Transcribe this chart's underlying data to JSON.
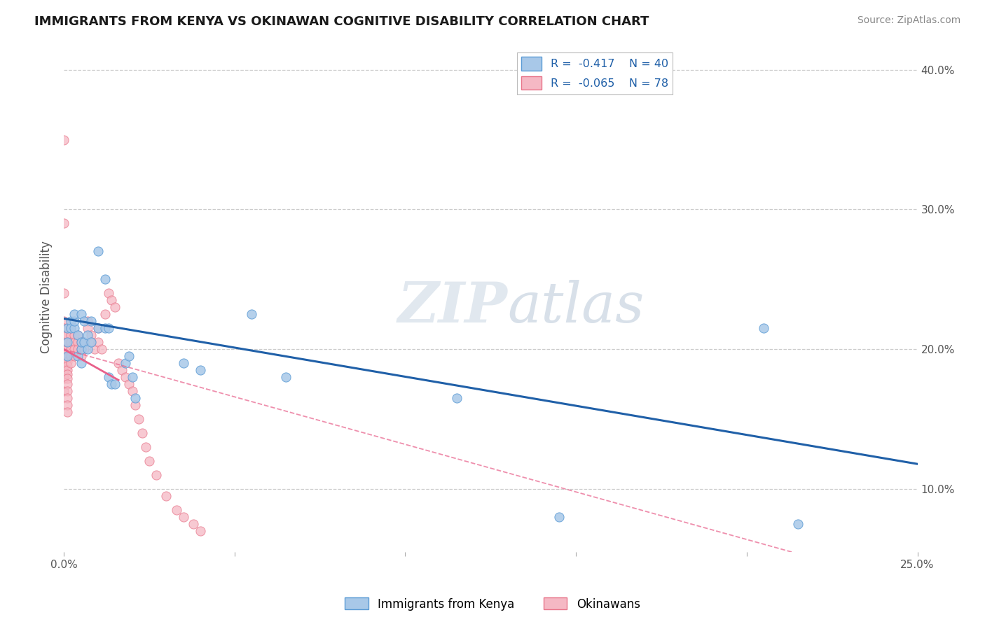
{
  "title": "IMMIGRANTS FROM KENYA VS OKINAWAN COGNITIVE DISABILITY CORRELATION CHART",
  "source": "Source: ZipAtlas.com",
  "ylabel": "Cognitive Disability",
  "xlim": [
    0.0,
    0.25
  ],
  "ylim": [
    0.055,
    0.42
  ],
  "ytick_right_labels": [
    "10.0%",
    "20.0%",
    "30.0%",
    "40.0%"
  ],
  "ytick_right_values": [
    0.1,
    0.2,
    0.3,
    0.4
  ],
  "background_color": "#ffffff",
  "grid_color": "#cccccc",
  "kenya_scatter": {
    "x": [
      0.001,
      0.001,
      0.001,
      0.002,
      0.002,
      0.003,
      0.003,
      0.003,
      0.004,
      0.004,
      0.005,
      0.005,
      0.005,
      0.005,
      0.006,
      0.006,
      0.007,
      0.007,
      0.008,
      0.008,
      0.01,
      0.01,
      0.012,
      0.012,
      0.013,
      0.013,
      0.014,
      0.015,
      0.018,
      0.019,
      0.02,
      0.021,
      0.035,
      0.04,
      0.055,
      0.065,
      0.115,
      0.145,
      0.205,
      0.215
    ],
    "y": [
      0.215,
      0.205,
      0.195,
      0.22,
      0.215,
      0.215,
      0.22,
      0.225,
      0.195,
      0.21,
      0.19,
      0.2,
      0.205,
      0.225,
      0.205,
      0.22,
      0.2,
      0.21,
      0.205,
      0.22,
      0.215,
      0.27,
      0.215,
      0.25,
      0.215,
      0.18,
      0.175,
      0.175,
      0.19,
      0.195,
      0.18,
      0.165,
      0.19,
      0.185,
      0.225,
      0.18,
      0.165,
      0.08,
      0.215,
      0.075
    ],
    "color": "#a8c8e8",
    "edgecolor": "#5b9bd5"
  },
  "okinawa_scatter": {
    "x": [
      0.0,
      0.0,
      0.0,
      0.0,
      0.0,
      0.0,
      0.0,
      0.0,
      0.0,
      0.0,
      0.0,
      0.0,
      0.0,
      0.0,
      0.0,
      0.0,
      0.001,
      0.001,
      0.001,
      0.001,
      0.001,
      0.001,
      0.001,
      0.001,
      0.001,
      0.001,
      0.001,
      0.001,
      0.001,
      0.001,
      0.001,
      0.001,
      0.002,
      0.002,
      0.002,
      0.002,
      0.002,
      0.002,
      0.003,
      0.003,
      0.003,
      0.003,
      0.004,
      0.004,
      0.004,
      0.005,
      0.005,
      0.005,
      0.006,
      0.006,
      0.007,
      0.007,
      0.008,
      0.008,
      0.009,
      0.01,
      0.01,
      0.011,
      0.012,
      0.013,
      0.014,
      0.015,
      0.016,
      0.017,
      0.018,
      0.019,
      0.02,
      0.021,
      0.022,
      0.023,
      0.024,
      0.025,
      0.027,
      0.03,
      0.033,
      0.035,
      0.038,
      0.04
    ],
    "y": [
      0.35,
      0.29,
      0.24,
      0.22,
      0.215,
      0.21,
      0.205,
      0.2,
      0.197,
      0.194,
      0.191,
      0.188,
      0.185,
      0.182,
      0.179,
      0.17,
      0.215,
      0.21,
      0.205,
      0.2,
      0.197,
      0.194,
      0.191,
      0.188,
      0.185,
      0.182,
      0.179,
      0.175,
      0.17,
      0.165,
      0.16,
      0.155,
      0.215,
      0.21,
      0.205,
      0.2,
      0.195,
      0.19,
      0.21,
      0.205,
      0.2,
      0.195,
      0.21,
      0.205,
      0.2,
      0.205,
      0.2,
      0.195,
      0.205,
      0.2,
      0.22,
      0.215,
      0.21,
      0.205,
      0.2,
      0.215,
      0.205,
      0.2,
      0.225,
      0.24,
      0.235,
      0.23,
      0.19,
      0.185,
      0.18,
      0.175,
      0.17,
      0.16,
      0.15,
      0.14,
      0.13,
      0.12,
      0.11,
      0.095,
      0.085,
      0.08,
      0.075,
      0.07
    ],
    "color": "#f5b8c4",
    "edgecolor": "#e8758a"
  },
  "kenya_trendline": {
    "x": [
      0.0,
      0.25
    ],
    "y": [
      0.222,
      0.118
    ],
    "color": "#2060a8",
    "lw": 2.2
  },
  "okinawa_trendline_solid": {
    "x": [
      0.0,
      0.016
    ],
    "y": [
      0.2,
      0.178
    ],
    "color": "#e8608a",
    "lw": 2.0
  },
  "okinawa_trendline_dashed": {
    "x": [
      0.0,
      0.25
    ],
    "y": [
      0.2,
      0.03
    ],
    "color": "#e8608a",
    "lw": 1.3,
    "linestyle": "--"
  }
}
